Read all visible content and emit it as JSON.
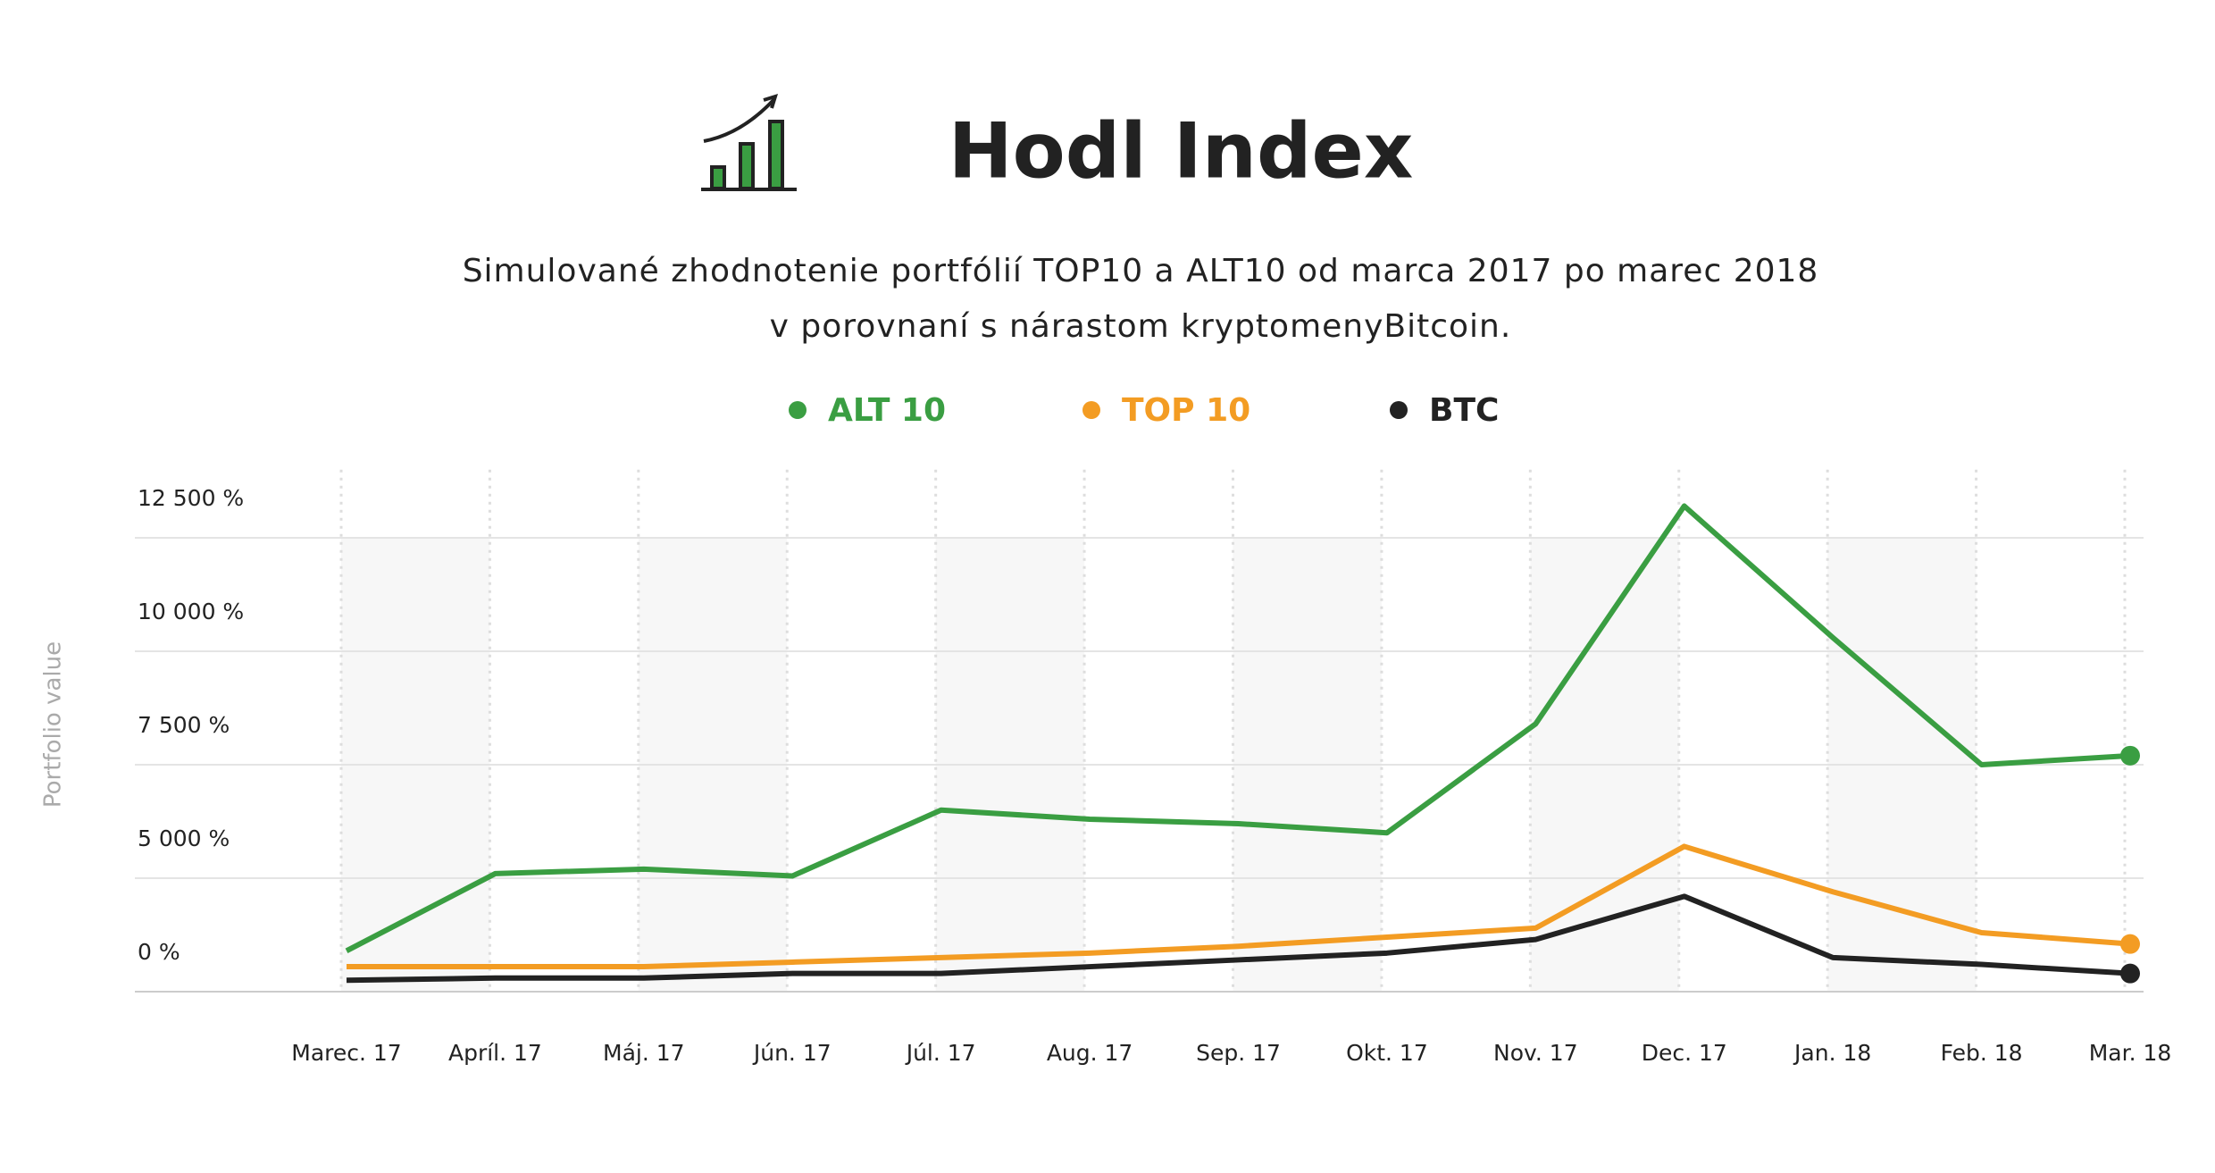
{
  "chart_data": {
    "type": "line",
    "title": "Hodl Index",
    "subtitle": [
      "Simulované zhodnotenie portfólií TOP10 a ALT10 od marca 2017 po marec 2018",
      "v porovnaní s nárastom kryptomenyBitcoin."
    ],
    "y_label": "Portfolio value",
    "categories": [
      "Marec. 17",
      "Apríl. 17",
      "Máj. 17",
      "Jún. 17",
      "Júl. 17",
      "Aug. 17",
      "Sep. 17",
      "Okt. 17",
      "Nov. 17",
      "Dec. 17",
      "Jan. 18",
      "Feb. 18",
      "Mar. 18"
    ],
    "series": [
      {
        "name": "ALT 10",
        "color": "#3a9e42",
        "values": [
          1800,
          5100,
          5200,
          5050,
          6500,
          6300,
          6200,
          6000,
          8400,
          13200,
          10300,
          7500,
          7700
        ]
      },
      {
        "name": "TOP 10",
        "color": "#f39c23",
        "values": [
          1100,
          1100,
          1100,
          1300,
          1500,
          1700,
          2000,
          2400,
          2800,
          5700,
          4400,
          2600,
          2100
        ]
      },
      {
        "name": "BTC",
        "color": "#222222",
        "values": [
          500,
          600,
          600,
          800,
          800,
          1100,
          1400,
          1700,
          2300,
          4200,
          1500,
          1200,
          800
        ]
      }
    ],
    "ylim": [
      0,
      14000
    ],
    "yticks": [
      {
        "value": 0,
        "label": "0 %"
      },
      {
        "value": 5000,
        "label": "5 000 %"
      },
      {
        "value": 7500,
        "label": "7 500 %"
      },
      {
        "value": 10000,
        "label": "10 000 %"
      },
      {
        "value": 12500,
        "label": "12 500 %"
      }
    ],
    "grid": true,
    "legend": "top"
  }
}
